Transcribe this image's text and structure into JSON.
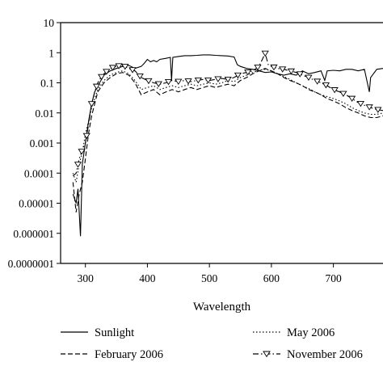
{
  "chart_data": {
    "type": "line",
    "title": "",
    "xlabel": "Wavelength",
    "ylabel": "",
    "xlim": [
      260,
      780
    ],
    "ylim": [
      1e-07,
      10
    ],
    "yscale": "log",
    "grid": false,
    "legend_position": "bottom",
    "x_ticks": [
      300,
      400,
      500,
      600,
      700
    ],
    "x_tick_labels": [
      "300",
      "400",
      "500",
      "600",
      "700"
    ],
    "y_ticks": [
      1e-07,
      1e-06,
      1e-05,
      0.0001,
      0.001,
      0.01,
      0.1,
      1,
      10
    ],
    "y_tick_labels": [
      "0.0000001",
      "0.000001",
      "0.00001",
      "0.0001",
      "0.001",
      "0.01",
      "0.1",
      "1",
      "10"
    ],
    "series": [
      {
        "name": "Sunlight",
        "style": "solid",
        "marker": "none",
        "color": "#000000",
        "points": [
          [
            280,
            2e-05
          ],
          [
            285,
            1e-05
          ],
          [
            288,
            3e-05
          ],
          [
            292,
            8e-07
          ],
          [
            295,
            0.0002
          ],
          [
            300,
            0.001
          ],
          [
            305,
            0.005
          ],
          [
            310,
            0.02
          ],
          [
            315,
            0.05
          ],
          [
            320,
            0.08
          ],
          [
            325,
            0.12
          ],
          [
            330,
            0.18
          ],
          [
            340,
            0.25
          ],
          [
            350,
            0.3
          ],
          [
            360,
            0.35
          ],
          [
            370,
            0.38
          ],
          [
            380,
            0.3
          ],
          [
            390,
            0.35
          ],
          [
            395,
            0.45
          ],
          [
            400,
            0.6
          ],
          [
            405,
            0.5
          ],
          [
            410,
            0.55
          ],
          [
            415,
            0.5
          ],
          [
            420,
            0.6
          ],
          [
            430,
            0.65
          ],
          [
            437,
            0.7
          ],
          [
            439,
            0.12
          ],
          [
            441,
            0.7
          ],
          [
            450,
            0.75
          ],
          [
            460,
            0.8
          ],
          [
            470,
            0.8
          ],
          [
            480,
            0.82
          ],
          [
            490,
            0.85
          ],
          [
            500,
            0.85
          ],
          [
            510,
            0.82
          ],
          [
            520,
            0.8
          ],
          [
            530,
            0.78
          ],
          [
            540,
            0.72
          ],
          [
            545,
            0.4
          ],
          [
            550,
            0.35
          ],
          [
            560,
            0.3
          ],
          [
            570,
            0.28
          ],
          [
            580,
            0.25
          ],
          [
            590,
            0.22
          ],
          [
            600,
            0.23
          ],
          [
            610,
            0.2
          ],
          [
            620,
            0.18
          ],
          [
            630,
            0.2
          ],
          [
            640,
            0.18
          ],
          [
            650,
            0.25
          ],
          [
            660,
            0.2
          ],
          [
            670,
            0.22
          ],
          [
            680,
            0.25
          ],
          [
            686,
            0.12
          ],
          [
            690,
            0.25
          ],
          [
            700,
            0.26
          ],
          [
            710,
            0.25
          ],
          [
            720,
            0.28
          ],
          [
            730,
            0.28
          ],
          [
            740,
            0.25
          ],
          [
            750,
            0.28
          ],
          [
            758,
            0.05
          ],
          [
            760,
            0.15
          ],
          [
            770,
            0.28
          ],
          [
            780,
            0.3
          ]
        ]
      },
      {
        "name": "February 2006",
        "style": "dashed",
        "marker": "none",
        "color": "#000000",
        "points": [
          [
            280,
            5e-05
          ],
          [
            285,
            5e-06
          ],
          [
            290,
            2e-05
          ],
          [
            295,
            5e-05
          ],
          [
            300,
            0.0003
          ],
          [
            305,
            0.002
          ],
          [
            310,
            0.008
          ],
          [
            315,
            0.02
          ],
          [
            320,
            0.05
          ],
          [
            330,
            0.1
          ],
          [
            340,
            0.15
          ],
          [
            350,
            0.2
          ],
          [
            360,
            0.22
          ],
          [
            370,
            0.18
          ],
          [
            380,
            0.1
          ],
          [
            390,
            0.04
          ],
          [
            400,
            0.05
          ],
          [
            410,
            0.06
          ],
          [
            420,
            0.04
          ],
          [
            430,
            0.05
          ],
          [
            440,
            0.06
          ],
          [
            450,
            0.05
          ],
          [
            460,
            0.06
          ],
          [
            470,
            0.07
          ],
          [
            480,
            0.06
          ],
          [
            490,
            0.07
          ],
          [
            500,
            0.08
          ],
          [
            510,
            0.07
          ],
          [
            520,
            0.08
          ],
          [
            530,
            0.09
          ],
          [
            540,
            0.08
          ],
          [
            550,
            0.12
          ],
          [
            560,
            0.15
          ],
          [
            570,
            0.2
          ],
          [
            580,
            0.25
          ],
          [
            590,
            0.3
          ],
          [
            600,
            0.25
          ],
          [
            610,
            0.2
          ],
          [
            620,
            0.15
          ],
          [
            630,
            0.12
          ],
          [
            640,
            0.1
          ],
          [
            650,
            0.08
          ],
          [
            660,
            0.06
          ],
          [
            670,
            0.05
          ],
          [
            680,
            0.04
          ],
          [
            690,
            0.03
          ],
          [
            700,
            0.025
          ],
          [
            710,
            0.02
          ],
          [
            720,
            0.015
          ],
          [
            730,
            0.012
          ],
          [
            740,
            0.01
          ],
          [
            750,
            0.008
          ],
          [
            760,
            0.007
          ],
          [
            770,
            0.007
          ],
          [
            780,
            0.008
          ]
        ]
      },
      {
        "name": "May 2006",
        "style": "dotted",
        "marker": "none",
        "color": "#000000",
        "points": [
          [
            280,
            0.0001
          ],
          [
            285,
            5e-05
          ],
          [
            290,
            0.0002
          ],
          [
            295,
            0.0005
          ],
          [
            300,
            0.002
          ],
          [
            305,
            0.005
          ],
          [
            310,
            0.015
          ],
          [
            315,
            0.03
          ],
          [
            320,
            0.06
          ],
          [
            330,
            0.12
          ],
          [
            340,
            0.18
          ],
          [
            350,
            0.22
          ],
          [
            360,
            0.25
          ],
          [
            370,
            0.2
          ],
          [
            380,
            0.12
          ],
          [
            390,
            0.06
          ],
          [
            400,
            0.07
          ],
          [
            410,
            0.08
          ],
          [
            420,
            0.06
          ],
          [
            430,
            0.07
          ],
          [
            440,
            0.08
          ],
          [
            450,
            0.07
          ],
          [
            460,
            0.08
          ],
          [
            470,
            0.09
          ],
          [
            480,
            0.08
          ],
          [
            490,
            0.09
          ],
          [
            500,
            0.1
          ],
          [
            510,
            0.09
          ],
          [
            520,
            0.1
          ],
          [
            530,
            0.12
          ],
          [
            540,
            0.11
          ],
          [
            550,
            0.15
          ],
          [
            560,
            0.18
          ],
          [
            570,
            0.22
          ],
          [
            580,
            0.26
          ],
          [
            590,
            0.28
          ],
          [
            600,
            0.25
          ],
          [
            610,
            0.2
          ],
          [
            620,
            0.16
          ],
          [
            630,
            0.13
          ],
          [
            640,
            0.1
          ],
          [
            650,
            0.08
          ],
          [
            660,
            0.065
          ],
          [
            670,
            0.05
          ],
          [
            680,
            0.04
          ],
          [
            690,
            0.035
          ],
          [
            700,
            0.03
          ],
          [
            710,
            0.025
          ],
          [
            720,
            0.02
          ],
          [
            730,
            0.015
          ],
          [
            740,
            0.012
          ],
          [
            750,
            0.01
          ],
          [
            760,
            0.009
          ],
          [
            770,
            0.009
          ],
          [
            780,
            0.01
          ]
        ]
      },
      {
        "name": "November 2006",
        "style": "dashdot",
        "marker": "triangle-down",
        "color": "#000000",
        "points": [
          [
            280,
            8e-05
          ],
          [
            285,
            0.0001
          ],
          [
            290,
            0.0003
          ],
          [
            295,
            0.0006
          ],
          [
            300,
            0.001
          ],
          [
            305,
            0.004
          ],
          [
            310,
            0.02
          ],
          [
            315,
            0.05
          ],
          [
            320,
            0.1
          ],
          [
            325,
            0.15
          ],
          [
            330,
            0.2
          ],
          [
            340,
            0.3
          ],
          [
            350,
            0.35
          ],
          [
            360,
            0.38
          ],
          [
            370,
            0.3
          ],
          [
            380,
            0.25
          ],
          [
            390,
            0.15
          ],
          [
            400,
            0.12
          ],
          [
            410,
            0.1
          ],
          [
            420,
            0.09
          ],
          [
            430,
            0.1
          ],
          [
            440,
            0.12
          ],
          [
            450,
            0.11
          ],
          [
            460,
            0.12
          ],
          [
            470,
            0.11
          ],
          [
            480,
            0.12
          ],
          [
            490,
            0.13
          ],
          [
            500,
            0.12
          ],
          [
            510,
            0.13
          ],
          [
            520,
            0.14
          ],
          [
            530,
            0.13
          ],
          [
            540,
            0.15
          ],
          [
            550,
            0.2
          ],
          [
            560,
            0.22
          ],
          [
            570,
            0.25
          ],
          [
            580,
            0.35
          ],
          [
            590,
            0.95
          ],
          [
            595,
            0.4
          ],
          [
            600,
            0.35
          ],
          [
            610,
            0.3
          ],
          [
            620,
            0.28
          ],
          [
            630,
            0.25
          ],
          [
            640,
            0.22
          ],
          [
            650,
            0.18
          ],
          [
            660,
            0.15
          ],
          [
            670,
            0.12
          ],
          [
            680,
            0.1
          ],
          [
            690,
            0.08
          ],
          [
            700,
            0.06
          ],
          [
            710,
            0.05
          ],
          [
            720,
            0.04
          ],
          [
            730,
            0.03
          ],
          [
            740,
            0.022
          ],
          [
            750,
            0.018
          ],
          [
            760,
            0.015
          ],
          [
            770,
            0.013
          ],
          [
            780,
            0.012
          ]
        ],
        "marker_x": [
          288,
          294,
          302,
          310,
          318,
          326,
          334,
          344,
          354,
          364,
          376,
          388,
          402,
          418,
          434,
          450,
          466,
          482,
          498,
          514,
          530,
          546,
          562,
          578,
          590,
          604,
          618,
          632,
          646,
          660,
          674,
          688,
          702,
          716,
          730,
          744,
          758,
          772
        ]
      }
    ]
  }
}
